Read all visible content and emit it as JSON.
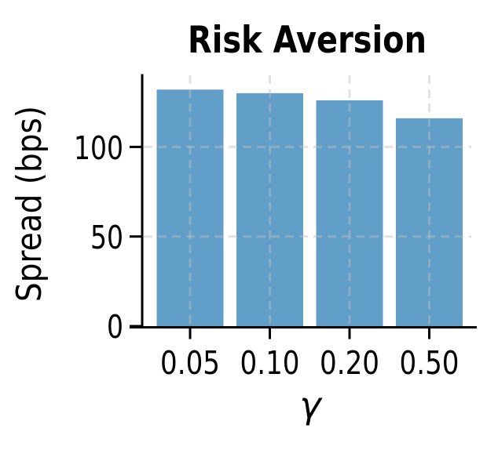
{
  "figure": {
    "background": "#ffffff"
  },
  "chart_data": {
    "type": "bar",
    "title": "Risk Aversion",
    "xlabel": "γ",
    "ylabel": "Spread (bps)",
    "categories": [
      "0.05",
      "0.10",
      "0.20",
      "0.50"
    ],
    "values": [
      132,
      130,
      126,
      116
    ],
    "ylim": [
      0,
      140
    ],
    "yticks": [
      0,
      50,
      100
    ],
    "ytick_labels": [
      "0",
      "50",
      "100"
    ],
    "legend": "none",
    "grid": "dashed gridlines at x ticks and y ticks 50/100, drawn over bars",
    "bar_color": "#619FC8",
    "grid_color": "#BEBEBE",
    "grid_opacity": 0.45,
    "axis_color": "#000000",
    "text_color": "#000000"
  }
}
